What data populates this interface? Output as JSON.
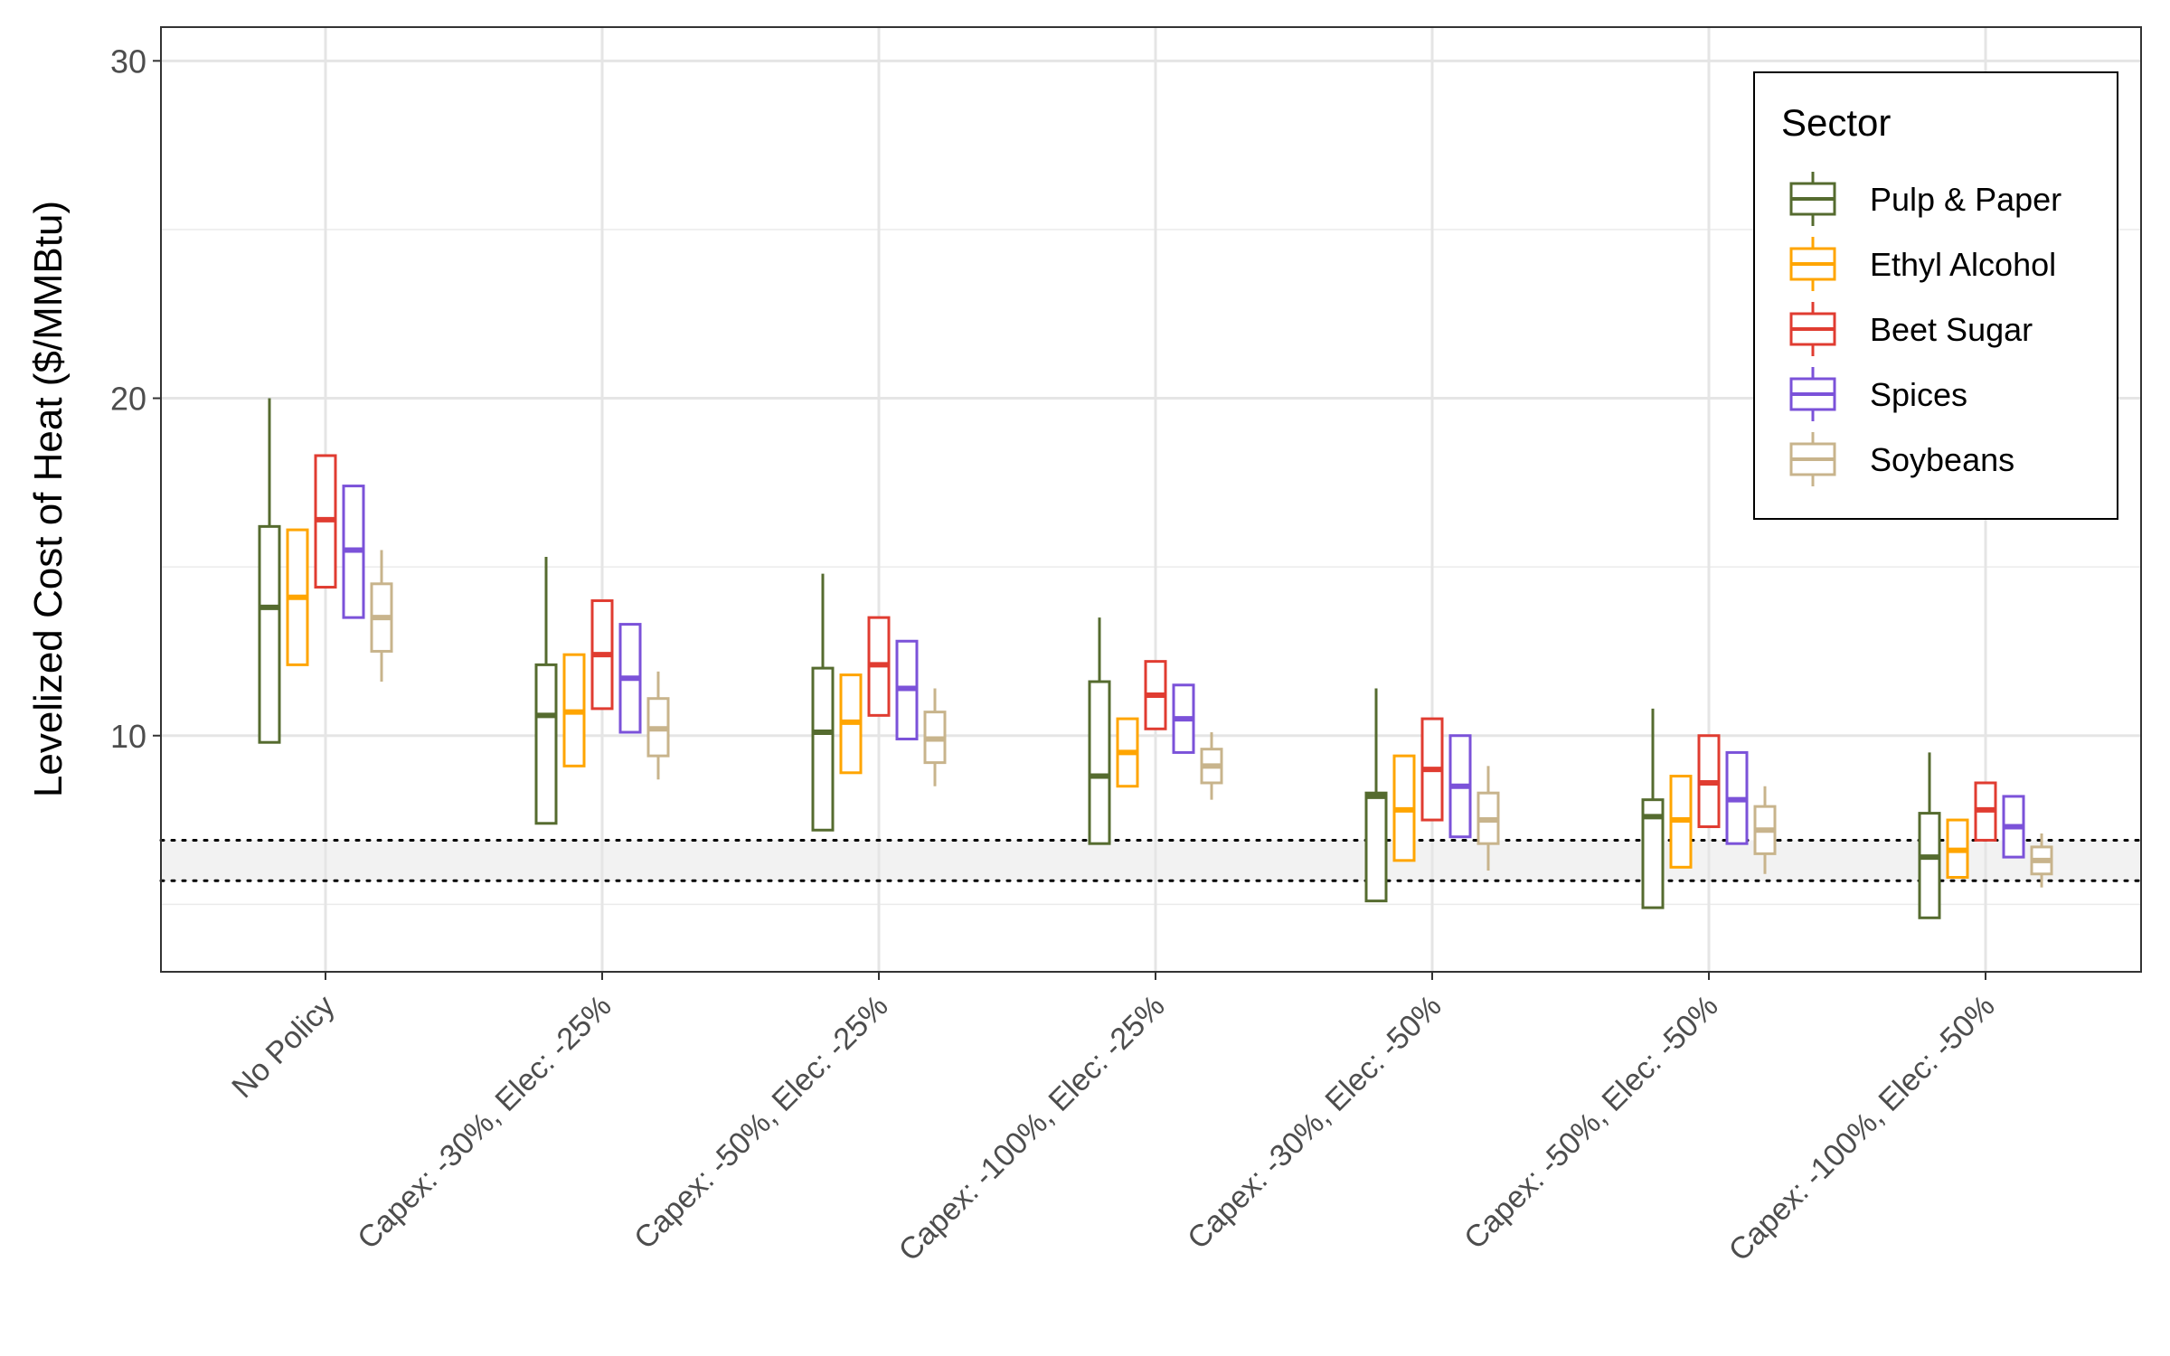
{
  "chart_data": {
    "type": "box",
    "ylabel": "Levelized Cost of Heat ($/MMBtu)",
    "ylim": [
      3,
      31
    ],
    "y_ticks": [
      10,
      20,
      30
    ],
    "y_tick_labels": [
      "10",
      "20",
      "30"
    ],
    "grid": true,
    "categories": [
      "No Policy",
      "Capex: -30%, Elec: -25%",
      "Capex: -50%, Elec: -25%",
      "Capex: -100%, Elec: -25%",
      "Capex: -30%, Elec: -50%",
      "Capex: -50%, Elec: -50%",
      "Capex: -100%, Elec: -50%"
    ],
    "legend": {
      "title": "Sector",
      "placement": "top-right"
    },
    "reference_band": {
      "low": 5.7,
      "high": 6.9
    },
    "series": [
      {
        "name": "Pulp & Paper",
        "color": "#556B2F",
        "boxes": [
          {
            "min": 9.8,
            "q1": 9.8,
            "median": 13.8,
            "q3": 16.2,
            "max": 20.0
          },
          {
            "min": 7.4,
            "q1": 7.4,
            "median": 10.6,
            "q3": 12.1,
            "max": 15.3
          },
          {
            "min": 7.2,
            "q1": 7.2,
            "median": 10.1,
            "q3": 12.0,
            "max": 14.8
          },
          {
            "min": 6.8,
            "q1": 6.8,
            "median": 8.8,
            "q3": 11.6,
            "max": 13.5
          },
          {
            "min": 5.1,
            "q1": 5.1,
            "median": 8.2,
            "q3": 8.3,
            "max": 11.4
          },
          {
            "min": 4.9,
            "q1": 4.9,
            "median": 7.6,
            "q3": 8.1,
            "max": 10.8
          },
          {
            "min": 4.6,
            "q1": 4.6,
            "median": 6.4,
            "q3": 7.7,
            "max": 9.5
          }
        ]
      },
      {
        "name": "Ethyl Alcohol",
        "color": "#FFA500",
        "boxes": [
          {
            "min": 12.1,
            "q1": 12.1,
            "median": 14.1,
            "q3": 16.1,
            "max": 16.1
          },
          {
            "min": 9.1,
            "q1": 9.1,
            "median": 10.7,
            "q3": 12.4,
            "max": 12.4
          },
          {
            "min": 8.9,
            "q1": 8.9,
            "median": 10.4,
            "q3": 11.8,
            "max": 11.8
          },
          {
            "min": 8.5,
            "q1": 8.5,
            "median": 9.5,
            "q3": 10.5,
            "max": 10.5
          },
          {
            "min": 6.3,
            "q1": 6.3,
            "median": 7.8,
            "q3": 9.4,
            "max": 9.4
          },
          {
            "min": 6.1,
            "q1": 6.1,
            "median": 7.5,
            "q3": 8.8,
            "max": 8.8
          },
          {
            "min": 5.8,
            "q1": 5.8,
            "median": 6.6,
            "q3": 7.5,
            "max": 7.5
          }
        ]
      },
      {
        "name": "Beet Sugar",
        "color": "#E03C31",
        "boxes": [
          {
            "min": 14.4,
            "q1": 14.4,
            "median": 16.4,
            "q3": 18.3,
            "max": 18.3
          },
          {
            "min": 10.8,
            "q1": 10.8,
            "median": 12.4,
            "q3": 14.0,
            "max": 14.0
          },
          {
            "min": 10.6,
            "q1": 10.6,
            "median": 12.1,
            "q3": 13.5,
            "max": 13.5
          },
          {
            "min": 10.2,
            "q1": 10.2,
            "median": 11.2,
            "q3": 12.2,
            "max": 12.2
          },
          {
            "min": 7.5,
            "q1": 7.5,
            "median": 9.0,
            "q3": 10.5,
            "max": 10.5
          },
          {
            "min": 7.3,
            "q1": 7.3,
            "median": 8.6,
            "q3": 10.0,
            "max": 10.0
          },
          {
            "min": 6.9,
            "q1": 6.9,
            "median": 7.8,
            "q3": 8.6,
            "max": 8.6
          }
        ]
      },
      {
        "name": "Spices",
        "color": "#7B52D9",
        "boxes": [
          {
            "min": 13.5,
            "q1": 13.5,
            "median": 15.5,
            "q3": 17.4,
            "max": 17.4
          },
          {
            "min": 10.1,
            "q1": 10.1,
            "median": 11.7,
            "q3": 13.3,
            "max": 13.3
          },
          {
            "min": 9.9,
            "q1": 9.9,
            "median": 11.4,
            "q3": 12.8,
            "max": 12.8
          },
          {
            "min": 9.5,
            "q1": 9.5,
            "median": 10.5,
            "q3": 11.5,
            "max": 11.5
          },
          {
            "min": 7.0,
            "q1": 7.0,
            "median": 8.5,
            "q3": 10.0,
            "max": 10.0
          },
          {
            "min": 6.8,
            "q1": 6.8,
            "median": 8.1,
            "q3": 9.5,
            "max": 9.5
          },
          {
            "min": 6.4,
            "q1": 6.4,
            "median": 7.3,
            "q3": 8.2,
            "max": 8.2
          }
        ]
      },
      {
        "name": "Soybeans",
        "color": "#C8B48C",
        "boxes": [
          {
            "min": 11.6,
            "q1": 12.5,
            "median": 13.5,
            "q3": 14.5,
            "max": 15.5
          },
          {
            "min": 8.7,
            "q1": 9.4,
            "median": 10.2,
            "q3": 11.1,
            "max": 11.9
          },
          {
            "min": 8.5,
            "q1": 9.2,
            "median": 9.9,
            "q3": 10.7,
            "max": 11.4
          },
          {
            "min": 8.1,
            "q1": 8.6,
            "median": 9.1,
            "q3": 9.6,
            "max": 10.1
          },
          {
            "min": 6.0,
            "q1": 6.8,
            "median": 7.5,
            "q3": 8.3,
            "max": 9.1
          },
          {
            "min": 5.9,
            "q1": 6.5,
            "median": 7.2,
            "q3": 7.9,
            "max": 8.5
          },
          {
            "min": 5.5,
            "q1": 5.9,
            "median": 6.3,
            "q3": 6.7,
            "max": 7.1
          }
        ]
      }
    ]
  }
}
